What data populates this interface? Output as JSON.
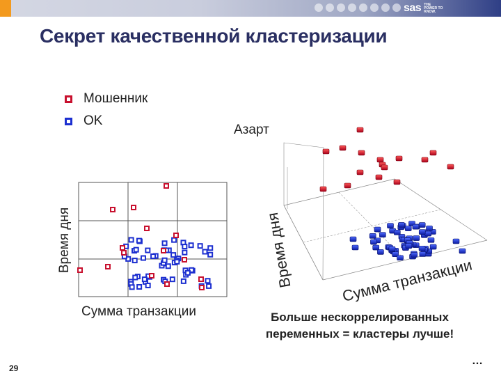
{
  "slide": {
    "title": "Секрет качественной кластеризации",
    "page_number": "29",
    "legend": [
      {
        "label": "Мошенник",
        "color": "#c8102e"
      },
      {
        "label": "OK",
        "color": "#1c2fd0"
      }
    ],
    "left_chart": {
      "xlabel": "Сумма транзакции",
      "ylabel": "Время дня"
    },
    "right_chart": {
      "zlabel": "Азарт",
      "ylabel": "Время дня",
      "xlabel": "Сумма транзакции"
    },
    "conclusion_line1": "Больше нескоррелированных",
    "conclusion_line2": "переменных = кластеры лучше!",
    "ellipsis": "…"
  },
  "brand": {
    "logo": "sas",
    "tagline": "THE POWER TO KNOW.",
    "accent": "#f39a1e",
    "fraud_color": "#c8102e",
    "ok_color": "#1c2fd0"
  }
}
